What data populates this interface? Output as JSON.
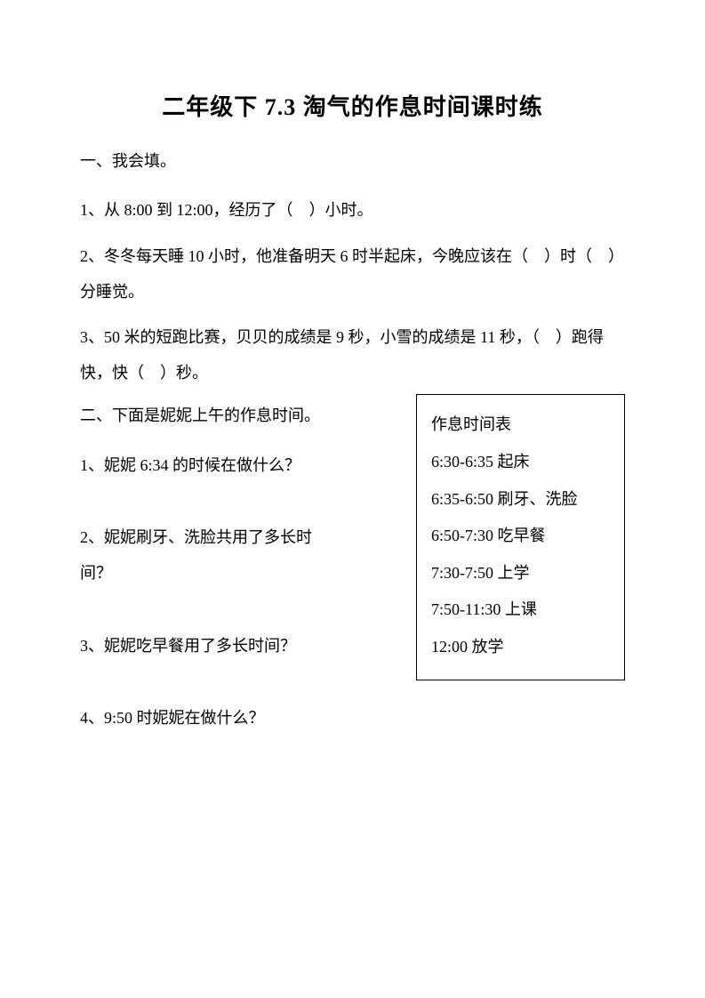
{
  "title": "二年级下 7.3 淘气的作息时间课时练",
  "section1": {
    "header": "一、我会填。",
    "q1": "1、从 8:00 到 12:00，经历了（　）小时。",
    "q2": "2、冬冬每天睡 10 小时，他准备明天 6 时半起床，今晚应该在（　）时（　）分睡觉。",
    "q3": "3、50 米的短跑比赛，贝贝的成绩是 9 秒，小雪的成绩是 11 秒，（　）跑得快，快（　）秒。"
  },
  "section2": {
    "header": "二、下面是妮妮上午的作息时间。",
    "q1": "1、妮妮 6:34 的时候在做什么？",
    "q2": "2、妮妮刷牙、洗脸共用了多长时间？",
    "q3": "3、妮妮吃早餐用了多长时间？",
    "q4": "4、9:50 时妮妮在做什么？"
  },
  "schedule": {
    "title": "作息时间表",
    "items": [
      "6:30-6:35 起床",
      "6:35-6:50 刷牙、洗脸",
      "6:50-7:30 吃早餐",
      "7:30-7:50 上学",
      "7:50-11:30 上课",
      "12:00 放学"
    ]
  },
  "colors": {
    "text": "#000000",
    "background": "#ffffff",
    "border": "#000000"
  }
}
